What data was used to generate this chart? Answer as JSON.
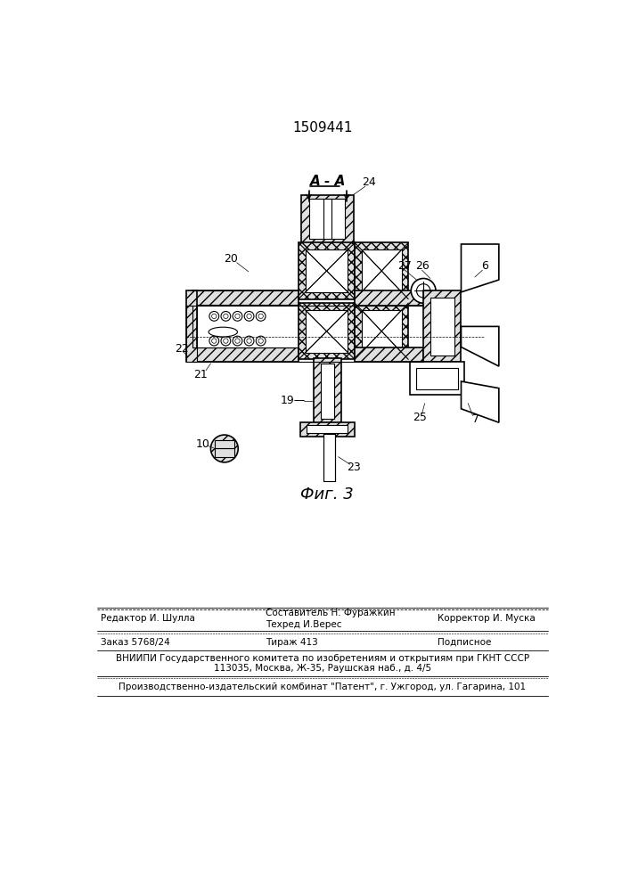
{
  "patent_number": "1509441",
  "fig_label": "Фиг. 3",
  "section_label": "А - А",
  "bg_color": "#ffffff",
  "footer_line1_left": "Редактор И. Шулла",
  "footer_line1_center1": "Составитель Н. Фуражкин",
  "footer_line1_center2": "Техред И.Верес",
  "footer_line1_right": "Корректор И. Муска",
  "footer_line2_left": "Заказ 5768/24",
  "footer_line2_center": "Тираж 413",
  "footer_line2_right": "Подписное",
  "footer_line3": "ВНИИПИ Государственного комитета по изобретениям и открытиям при ГКНТ СССР",
  "footer_line4": "113035, Москва, Ж-35, Раушская наб., д. 4/5",
  "footer_line5": "Производственно-издательский комбинат \"Патент\", г. Ужгород, ул. Гагарина, 101"
}
